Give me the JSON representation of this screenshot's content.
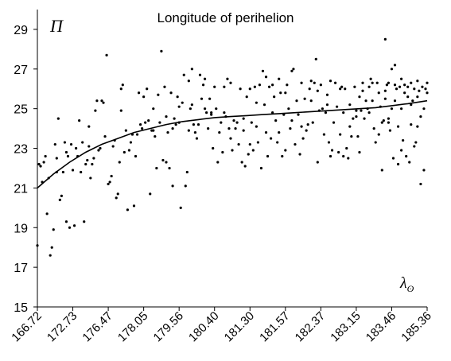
{
  "chart_data": {
    "type": "scatter",
    "title": "Longitude of perihelion",
    "ylabel_symbol": "Π",
    "xlabel_symbol": "λ",
    "xlabel_subscript": "ʘ",
    "ylim": [
      15,
      30
    ],
    "yticks": [
      15,
      17,
      19,
      21,
      23,
      25,
      27,
      29
    ],
    "x_tick_labels": [
      "166.72",
      "172.73",
      "176.47",
      "178.05",
      "179.56",
      "180.40",
      "181.30",
      "181.57",
      "182.37",
      "183.15",
      "183.46",
      "185.36"
    ],
    "grid": false,
    "legend": "none",
    "point_color": "#000000",
    "trend_color": "#000000",
    "point_index_range": [
      0,
      121
    ],
    "points": [
      [
        0,
        18.1
      ],
      [
        0.5,
        22.2
      ],
      [
        1,
        22.1
      ],
      [
        1.5,
        21.3
      ],
      [
        2,
        22.3
      ],
      [
        2.5,
        22.6
      ],
      [
        3,
        19.7
      ],
      [
        3.5,
        21.5
      ],
      [
        4,
        17.6
      ],
      [
        4.5,
        18.0
      ],
      [
        5,
        18.9
      ],
      [
        5.5,
        23.2
      ],
      [
        6,
        22.5
      ],
      [
        6.5,
        24.5
      ],
      [
        7,
        20.4
      ],
      [
        7.5,
        20.6
      ],
      [
        8,
        21.8
      ],
      [
        8.5,
        23.3
      ],
      [
        9,
        22.8
      ],
      [
        9.5,
        22.6
      ],
      [
        10,
        19.0
      ],
      [
        10.5,
        23.2
      ],
      [
        11,
        21.9
      ],
      [
        11.5,
        19.1
      ],
      [
        12,
        23.0
      ],
      [
        12.5,
        22.6
      ],
      [
        13,
        24.4
      ],
      [
        13.5,
        21.8
      ],
      [
        14,
        23.3
      ],
      [
        14.5,
        19.3
      ],
      [
        15,
        22.2
      ],
      [
        15.5,
        22.4
      ],
      [
        16,
        23.1
      ],
      [
        16.5,
        21.5
      ],
      [
        17,
        22.2
      ],
      [
        17.5,
        22.5
      ],
      [
        18,
        24.9
      ],
      [
        18.5,
        25.4
      ],
      [
        19,
        22.9
      ],
      [
        19.5,
        23.0
      ],
      [
        20,
        25.4
      ],
      [
        20.5,
        25.3
      ],
      [
        21,
        23.6
      ],
      [
        21.5,
        27.7
      ],
      [
        22,
        21.2
      ],
      [
        22.5,
        21.3
      ],
      [
        23,
        21.6
      ],
      [
        23.5,
        23.1
      ],
      [
        24,
        23.4
      ],
      [
        24.5,
        20.5
      ],
      [
        25,
        20.7
      ],
      [
        25.5,
        22.3
      ],
      [
        26,
        24.9
      ],
      [
        26.5,
        26.2
      ],
      [
        27,
        22.8
      ],
      [
        27.5,
        23.9
      ],
      [
        28,
        19.9
      ],
      [
        28.5,
        22.9
      ],
      [
        29,
        23.3
      ],
      [
        29.5,
        23.7
      ],
      [
        30,
        20.1
      ],
      [
        30.5,
        22.6
      ],
      [
        31,
        23.7
      ],
      [
        31.5,
        25.8
      ],
      [
        32,
        24.2
      ],
      [
        32.5,
        24.0
      ],
      [
        33,
        25.6
      ],
      [
        33.5,
        24.3
      ],
      [
        34,
        26.0
      ],
      [
        34.5,
        24.4
      ],
      [
        35,
        20.7
      ],
      [
        35.5,
        23.9
      ],
      [
        36,
        25.0
      ],
      [
        36.5,
        23.6
      ],
      [
        37,
        22.0
      ],
      [
        37.5,
        25.7
      ],
      [
        38,
        24.3
      ],
      [
        38.5,
        27.9
      ],
      [
        39,
        22.4
      ],
      [
        39.5,
        26.1
      ],
      [
        40,
        24.6
      ],
      [
        40.5,
        23.8
      ],
      [
        41,
        22.0
      ],
      [
        41.5,
        25.8
      ],
      [
        42,
        21.1
      ],
      [
        42.5,
        24.5
      ],
      [
        43,
        24.2
      ],
      [
        43.5,
        25.6
      ],
      [
        44,
        24.3
      ],
      [
        44.5,
        20.0
      ],
      [
        45,
        25.3
      ],
      [
        45.5,
        26.7
      ],
      [
        46,
        21.1
      ],
      [
        46.5,
        21.8
      ],
      [
        47,
        23.9
      ],
      [
        47.5,
        25.0
      ],
      [
        48,
        25.2
      ],
      [
        48.5,
        24.2
      ],
      [
        49,
        23.8
      ],
      [
        49.5,
        23.5
      ],
      [
        50,
        24.2
      ],
      [
        50.5,
        26.7
      ],
      [
        51,
        25.5
      ],
      [
        51.5,
        26.2
      ],
      [
        52,
        26.5
      ],
      [
        52.5,
        24.8
      ],
      [
        53,
        24.0
      ],
      [
        53.5,
        25.5
      ],
      [
        54,
        24.8
      ],
      [
        54.5,
        23.0
      ],
      [
        55,
        26.1
      ],
      [
        55.5,
        25.0
      ],
      [
        56,
        22.3
      ],
      [
        56.5,
        23.8
      ],
      [
        57,
        24.3
      ],
      [
        57.5,
        22.8
      ],
      [
        58,
        26.1
      ],
      [
        58.5,
        24.6
      ],
      [
        59,
        26.5
      ],
      [
        59.5,
        24.0
      ],
      [
        60,
        23.5
      ],
      [
        60.5,
        22.9
      ],
      [
        61,
        24.4
      ],
      [
        61.5,
        24.0
      ],
      [
        62,
        24.3
      ],
      [
        62.5,
        23.2
      ],
      [
        63,
        26.0
      ],
      [
        63.5,
        22.3
      ],
      [
        64,
        24.5
      ],
      [
        64.5,
        22.1
      ],
      [
        65,
        25.6
      ],
      [
        65.5,
        22.7
      ],
      [
        66,
        26.0
      ],
      [
        66.5,
        24.3
      ],
      [
        67,
        22.9
      ],
      [
        67.5,
        26.1
      ],
      [
        68,
        24.1
      ],
      [
        68.5,
        23.3
      ],
      [
        69,
        26.2
      ],
      [
        69.5,
        22.0
      ],
      [
        70,
        26.9
      ],
      [
        70.5,
        25.2
      ],
      [
        71,
        23.8
      ],
      [
        71.5,
        22.6
      ],
      [
        72,
        26.1
      ],
      [
        72.5,
        23.5
      ],
      [
        73,
        24.8
      ],
      [
        73.5,
        25.6
      ],
      [
        74,
        24.4
      ],
      [
        74.5,
        23.3
      ],
      [
        75,
        26.5
      ],
      [
        75.5,
        25.8
      ],
      [
        76,
        22.6
      ],
      [
        76.5,
        24.7
      ],
      [
        77,
        22.9
      ],
      [
        77.5,
        26.2
      ],
      [
        78,
        25.0
      ],
      [
        78.5,
        24.0
      ],
      [
        79,
        26.9
      ],
      [
        79.5,
        27.0
      ],
      [
        80,
        23.2
      ],
      [
        80.5,
        25.4
      ],
      [
        81,
        24.7
      ],
      [
        81.5,
        22.7
      ],
      [
        82,
        26.3
      ],
      [
        82.5,
        23.5
      ],
      [
        83,
        25.5
      ],
      [
        83.5,
        23.9
      ],
      [
        84,
        24.2
      ],
      [
        84.5,
        26.0
      ],
      [
        85,
        25.4
      ],
      [
        85.5,
        24.3
      ],
      [
        86,
        26.3
      ],
      [
        86.5,
        27.5
      ],
      [
        87,
        22.3
      ],
      [
        87.5,
        24.9
      ],
      [
        88,
        26.2
      ],
      [
        88.5,
        25.0
      ],
      [
        89,
        23.7
      ],
      [
        89.5,
        24.8
      ],
      [
        90,
        25.7
      ],
      [
        90.5,
        23.3
      ],
      [
        91,
        26.4
      ],
      [
        91.5,
        22.9
      ],
      [
        92,
        24.3
      ],
      [
        92.5,
        26.3
      ],
      [
        93,
        25.1
      ],
      [
        93.5,
        22.8
      ],
      [
        94,
        23.7
      ],
      [
        94.5,
        26.1
      ],
      [
        95,
        24.8
      ],
      [
        95.5,
        26.0
      ],
      [
        96,
        23.0
      ],
      [
        96.5,
        22.5
      ],
      [
        97,
        25.2
      ],
      [
        97.5,
        23.6
      ],
      [
        98,
        24.5
      ],
      [
        98.5,
        26.1
      ],
      [
        99,
        24.9
      ],
      [
        99.5,
        23.6
      ],
      [
        100,
        22.8
      ],
      [
        100.5,
        24.9
      ],
      [
        101,
        26.3
      ],
      [
        101.5,
        24.5
      ],
      [
        102,
        25.4
      ],
      [
        102.5,
        25.0
      ],
      [
        103,
        24.8
      ],
      [
        103.5,
        26.5
      ],
      [
        104,
        25.4
      ],
      [
        104.5,
        24.0
      ],
      [
        105,
        23.3
      ],
      [
        105.5,
        26.3
      ],
      [
        106,
        25.8
      ],
      [
        106.5,
        25.1
      ],
      [
        107,
        21.9
      ],
      [
        107.5,
        24.4
      ],
      [
        108,
        25.5
      ],
      [
        108.5,
        26.2
      ],
      [
        109,
        24.3
      ],
      [
        109.5,
        23.9
      ],
      [
        110,
        25.0
      ],
      [
        110.5,
        22.5
      ],
      [
        111,
        25.4
      ],
      [
        111.5,
        26.0
      ],
      [
        112,
        24.1
      ],
      [
        112.5,
        26.1
      ],
      [
        113,
        25.0
      ],
      [
        113.5,
        23.4
      ],
      [
        114,
        26.2
      ],
      [
        114.5,
        22.6
      ],
      [
        115,
        25.6
      ],
      [
        115.5,
        22.3
      ],
      [
        116,
        26.3
      ],
      [
        116.5,
        25.4
      ],
      [
        117,
        23.1
      ],
      [
        117.5,
        23.3
      ],
      [
        118,
        25.6
      ],
      [
        118.5,
        25.9
      ],
      [
        119,
        24.6
      ],
      [
        119.5,
        26.1
      ],
      [
        120,
        25.0
      ],
      [
        120.5,
        26.0
      ],
      [
        121,
        25.8
      ],
      [
        6,
        21.8
      ],
      [
        9,
        19.3
      ],
      [
        16,
        24.1
      ],
      [
        26,
        26.0
      ],
      [
        36,
        23.9
      ],
      [
        44,
        25.1
      ],
      [
        52,
        25.0
      ],
      [
        60,
        26.3
      ],
      [
        66,
        23.2
      ],
      [
        73,
        26.2
      ],
      [
        79,
        24.4
      ],
      [
        85,
        26.4
      ],
      [
        90,
        25.2
      ],
      [
        95,
        22.6
      ],
      [
        100,
        25.6
      ],
      [
        103,
        26.1
      ],
      [
        106,
        23.7
      ],
      [
        108,
        25.9
      ],
      [
        109,
        26.3
      ],
      [
        110,
        27.0
      ],
      [
        111,
        26.2
      ],
      [
        112,
        22.2
      ],
      [
        113,
        26.5
      ],
      [
        114,
        25.8
      ],
      [
        115,
        26.1
      ],
      [
        116,
        25.2
      ],
      [
        117,
        26.0
      ],
      [
        118,
        24.1
      ],
      [
        119,
        21.2
      ],
      [
        120,
        21.9
      ],
      [
        40,
        22.3
      ],
      [
        42,
        24.0
      ],
      [
        47,
        26.4
      ],
      [
        48,
        27.0
      ],
      [
        54,
        24.7
      ],
      [
        58,
        24.8
      ],
      [
        64,
        23.9
      ],
      [
        68,
        25.3
      ],
      [
        71,
        26.6
      ],
      [
        75,
        23.8
      ],
      [
        77,
        25.8
      ],
      [
        82,
        24.1
      ],
      [
        87,
        25.9
      ],
      [
        91,
        22.6
      ],
      [
        94,
        26.0
      ],
      [
        97,
        24.1
      ],
      [
        99,
        24.6
      ],
      [
        101,
        25.9
      ],
      [
        104,
        26.3
      ],
      [
        107,
        24.3
      ],
      [
        108,
        28.5
      ],
      [
        109,
        24.5
      ],
      [
        111,
        27.2
      ],
      [
        113,
        22.9
      ],
      [
        116,
        24.2
      ],
      [
        118,
        26.4
      ],
      [
        121,
        26.3
      ]
    ],
    "trend": [
      [
        0,
        21.0
      ],
      [
        5,
        21.7
      ],
      [
        10,
        22.3
      ],
      [
        15,
        22.8
      ],
      [
        20,
        23.2
      ],
      [
        25,
        23.5
      ],
      [
        30,
        23.8
      ],
      [
        35,
        24.0
      ],
      [
        40,
        24.2
      ],
      [
        45,
        24.35
      ],
      [
        50,
        24.45
      ],
      [
        55,
        24.55
      ],
      [
        60,
        24.6
      ],
      [
        65,
        24.65
      ],
      [
        70,
        24.7
      ],
      [
        75,
        24.75
      ],
      [
        80,
        24.8
      ],
      [
        85,
        24.85
      ],
      [
        90,
        24.9
      ],
      [
        95,
        24.95
      ],
      [
        100,
        25.0
      ],
      [
        105,
        25.05
      ],
      [
        110,
        25.15
      ],
      [
        115,
        25.25
      ],
      [
        121,
        25.4
      ]
    ]
  }
}
